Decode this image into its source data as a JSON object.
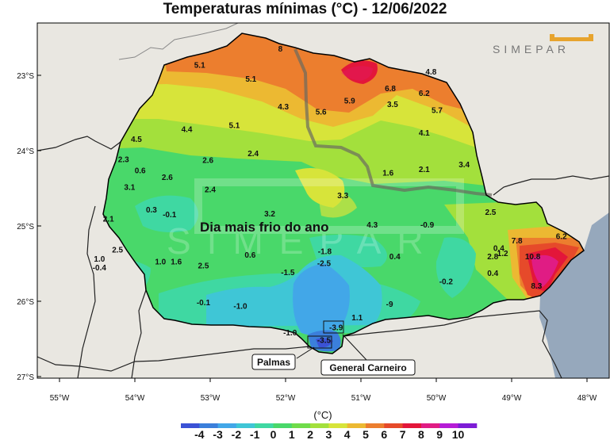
{
  "title": "Temperaturas mínimas (°C) - 12/06/2022",
  "logo_text": "SIMEPAR",
  "annotation": "Dia mais frio do ano",
  "callouts": {
    "palmas": "Palmas",
    "general_carneiro": "General Carneiro"
  },
  "lat_ticks": [
    "23°S",
    "24°S",
    "25°S",
    "26°S",
    "27°S"
  ],
  "lon_ticks": [
    "55°W",
    "54°W",
    "53°W",
    "52°W",
    "51°W",
    "50°W",
    "49°W",
    "48°W"
  ],
  "colorbar": {
    "unit": "(°C)",
    "labels": [
      "-4",
      "-3",
      "-2",
      "-1",
      "0",
      "1",
      "2",
      "3",
      "4",
      "5",
      "6",
      "7",
      "8",
      "9",
      "10"
    ],
    "colors": [
      "#3b52d6",
      "#3b7fdb",
      "#42a7e8",
      "#3fc6d6",
      "#3fd8a2",
      "#49d86a",
      "#6fdc4a",
      "#a3e03c",
      "#d7e43a",
      "#ecb932",
      "#ec7e2e",
      "#e64a2a",
      "#e3163a",
      "#e01c84",
      "#b51cd6",
      "#7d1cd6"
    ]
  },
  "stations": [
    {
      "t": "5.1",
      "lon": -53.14,
      "lat": -22.87
    },
    {
      "t": "8",
      "lon": -52.07,
      "lat": -22.65
    },
    {
      "t": "5.1",
      "lon": -52.46,
      "lat": -23.05
    },
    {
      "t": "4.3",
      "lon": -52.03,
      "lat": -23.42
    },
    {
      "t": "5.6",
      "lon": -51.53,
      "lat": -23.49
    },
    {
      "t": "5.9",
      "lon": -51.15,
      "lat": -23.34
    },
    {
      "t": "6.8",
      "lon": -50.61,
      "lat": -23.18
    },
    {
      "t": "4.8",
      "lon": -50.07,
      "lat": -22.96
    },
    {
      "t": "6.2",
      "lon": -50.16,
      "lat": -23.24
    },
    {
      "t": "3.5",
      "lon": -50.58,
      "lat": -23.39
    },
    {
      "t": "5.7",
      "lon": -49.99,
      "lat": -23.47
    },
    {
      "t": "4.4",
      "lon": -53.31,
      "lat": -23.72
    },
    {
      "t": "5.1",
      "lon": -52.68,
      "lat": -23.67
    },
    {
      "t": "4.1",
      "lon": -50.16,
      "lat": -23.77
    },
    {
      "t": "4.5",
      "lon": -53.98,
      "lat": -23.85
    },
    {
      "t": "2.4",
      "lon": -52.43,
      "lat": -24.04
    },
    {
      "t": "2.3",
      "lon": -54.15,
      "lat": -24.12
    },
    {
      "t": "2.6",
      "lon": -53.03,
      "lat": -24.13
    },
    {
      "t": "3.4",
      "lon": -49.63,
      "lat": -24.19
    },
    {
      "t": "2.1",
      "lon": -50.16,
      "lat": -24.25
    },
    {
      "t": "1.6",
      "lon": -50.64,
      "lat": -24.3
    },
    {
      "t": "0.6",
      "lon": -53.93,
      "lat": -24.27
    },
    {
      "t": "2.6",
      "lon": -53.57,
      "lat": -24.36
    },
    {
      "t": "3.1",
      "lon": -54.07,
      "lat": -24.49
    },
    {
      "t": "2.4",
      "lon": -53.0,
      "lat": -24.52
    },
    {
      "t": "3.3",
      "lon": -51.24,
      "lat": -24.6
    },
    {
      "t": "0.3",
      "lon": -53.78,
      "lat": -24.79
    },
    {
      "t": "-0.1",
      "lon": -53.54,
      "lat": -24.85
    },
    {
      "t": "3.2",
      "lon": -52.21,
      "lat": -24.84
    },
    {
      "t": "2.5",
      "lon": -49.28,
      "lat": -24.82
    },
    {
      "t": "2.1",
      "lon": -54.35,
      "lat": -24.91
    },
    {
      "t": "4.3",
      "lon": -50.85,
      "lat": -24.99
    },
    {
      "t": "-0.9",
      "lon": -50.12,
      "lat": -24.99
    },
    {
      "t": "7.8",
      "lon": -48.93,
      "lat": -25.2
    },
    {
      "t": "6.2",
      "lon": -48.34,
      "lat": -25.14
    },
    {
      "t": "2.5",
      "lon": -54.23,
      "lat": -25.32
    },
    {
      "t": "-1.8",
      "lon": -51.48,
      "lat": -25.34
    },
    {
      "t": "0.6",
      "lon": -52.47,
      "lat": -25.39
    },
    {
      "t": "0.4",
      "lon": -50.55,
      "lat": -25.41
    },
    {
      "t": "0.4",
      "lon": -49.17,
      "lat": -25.3
    },
    {
      "t": "2.8",
      "lon": -49.25,
      "lat": -25.41
    },
    {
      "t": "1.2",
      "lon": -49.12,
      "lat": -25.37
    },
    {
      "t": "10.8",
      "lon": -48.72,
      "lat": -25.41
    },
    {
      "t": "1.0",
      "lon": -54.47,
      "lat": -25.44
    },
    {
      "t": "1.0",
      "lon": -53.66,
      "lat": -25.48
    },
    {
      "t": "1.6",
      "lon": -53.45,
      "lat": -25.48
    },
    {
      "t": "-0.4",
      "lon": -54.47,
      "lat": -25.56
    },
    {
      "t": "2.5",
      "lon": -53.09,
      "lat": -25.53
    },
    {
      "t": "-2.5",
      "lon": -51.49,
      "lat": -25.5
    },
    {
      "t": "-1.5",
      "lon": -51.97,
      "lat": -25.62
    },
    {
      "t": "0.4",
      "lon": -49.25,
      "lat": -25.63
    },
    {
      "t": "-0.2",
      "lon": -49.87,
      "lat": -25.74
    },
    {
      "t": "8.3",
      "lon": -48.67,
      "lat": -25.8
    },
    {
      "t": "-0.1",
      "lon": -53.09,
      "lat": -26.02
    },
    {
      "t": "-1.0",
      "lon": -52.6,
      "lat": -26.07
    },
    {
      "t": "-9",
      "lon": -50.62,
      "lat": -26.04
    },
    {
      "t": "1.1",
      "lon": -51.05,
      "lat": -26.22
    },
    {
      "t": "-3.9",
      "lon": -51.33,
      "lat": -26.35
    },
    {
      "t": "-1.0",
      "lon": -51.94,
      "lat": -26.42
    },
    {
      "t": "-3.5",
      "lon": -51.49,
      "lat": -26.52
    }
  ]
}
